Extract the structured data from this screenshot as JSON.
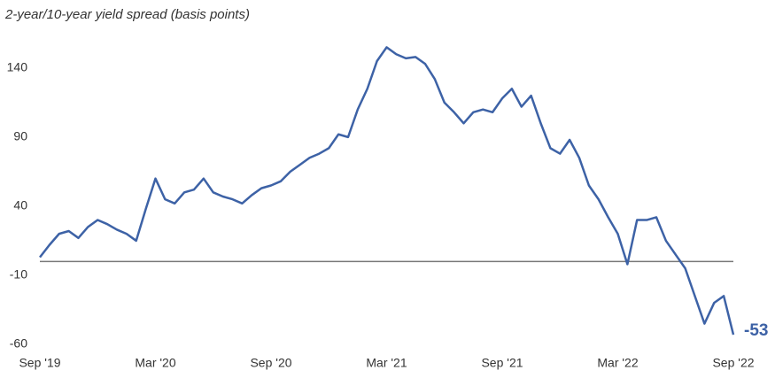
{
  "chart_data": {
    "type": "line",
    "title": "2-year/10-year yield spread (basis points)",
    "categories": [
      "Sep '19",
      null,
      null,
      null,
      null,
      null,
      null,
      null,
      null,
      null,
      null,
      null,
      "Mar '20",
      null,
      null,
      null,
      null,
      null,
      null,
      null,
      null,
      null,
      null,
      null,
      "Sep '20",
      null,
      null,
      null,
      null,
      null,
      null,
      null,
      null,
      null,
      null,
      null,
      "Mar '21",
      null,
      null,
      null,
      null,
      null,
      null,
      null,
      null,
      null,
      null,
      null,
      "Sep '21",
      null,
      null,
      null,
      null,
      null,
      null,
      null,
      null,
      null,
      null,
      null,
      "Mar '22",
      null,
      null,
      null,
      null,
      null,
      null,
      null,
      null,
      null,
      null,
      null,
      "Sep '22"
    ],
    "values": [
      3,
      12,
      20,
      22,
      17,
      25,
      30,
      27,
      23,
      20,
      15,
      38,
      60,
      45,
      42,
      50,
      52,
      60,
      50,
      47,
      45,
      42,
      48,
      53,
      55,
      58,
      65,
      70,
      75,
      78,
      82,
      92,
      90,
      110,
      125,
      145,
      155,
      150,
      147,
      148,
      143,
      132,
      115,
      108,
      100,
      108,
      110,
      108,
      118,
      125,
      112,
      120,
      100,
      82,
      78,
      88,
      75,
      55,
      45,
      32,
      20,
      -2,
      30,
      30,
      32,
      15,
      5,
      -5,
      -25,
      -45,
      -30,
      -25,
      -53
    ],
    "value_labels": [
      null,
      null,
      null,
      null,
      null,
      null,
      null,
      null,
      null,
      null,
      null,
      null,
      null,
      null,
      null,
      null,
      null,
      null,
      null,
      null,
      null,
      null,
      null,
      null,
      null,
      null,
      null,
      null,
      null,
      null,
      null,
      null,
      null,
      null,
      null,
      null,
      null,
      null,
      null,
      null,
      null,
      null,
      null,
      null,
      null,
      null,
      null,
      null,
      null,
      null,
      null,
      null,
      null,
      null,
      null,
      null,
      null,
      null,
      null,
      null,
      null,
      null,
      null,
      null,
      null,
      null,
      null,
      null,
      null,
      null,
      null,
      null,
      "-53"
    ],
    "color": "#3d62a6",
    "ylim": [
      -60,
      170
    ],
    "yticks": [
      -60,
      -10,
      40,
      90,
      140
    ],
    "grid": false,
    "zero_line": true
  }
}
